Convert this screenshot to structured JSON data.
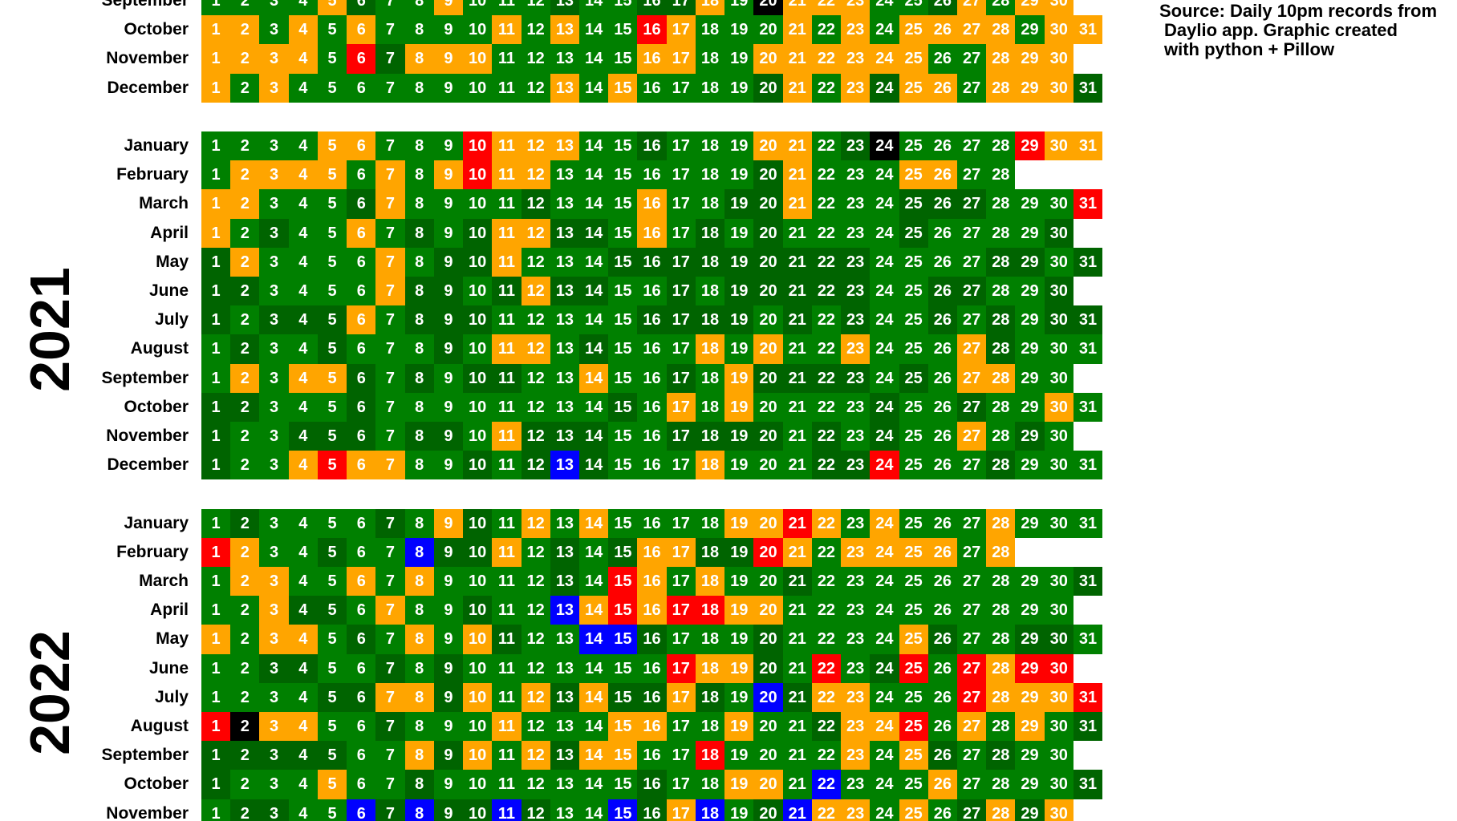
{
  "source_note": {
    "lines": [
      "Source: Daily 10pm records from",
      "Daylio app. Graphic created",
      "with python + Pillow"
    ]
  },
  "mood_colors": {
    "D": "#006400",
    "G": "#008000",
    "O": "#FFA500",
    "R": "#FF0000",
    "B": "#0000FF",
    "K": "#000000"
  },
  "years": [
    {
      "label": "",
      "months": [
        {
          "name": "September",
          "days": "GGGGODGGOGGGDGGDDOGKOOOGGDOGOO"
        },
        {
          "name": "October",
          "days": "OOGOGOGGGGOGOGGROGGGOGOGOOOOGOO"
        },
        {
          "name": "November",
          "days": "OOOOGRDOOOGGGGGOOGGOOOOOOGGOOO"
        },
        {
          "name": "December",
          "days": "OGOGGGGGGGGGOGOGGGGDOGODOOGOOOD"
        }
      ]
    },
    {
      "label": "2021",
      "months": [
        {
          "name": "January",
          "days": "GGGGOOGGGROOOGGDGGGOOGDKGGGGROO"
        },
        {
          "name": "February",
          "days": "GOOOOGOGOROOGGGGGGGDOGGGOOGG"
        },
        {
          "name": "March",
          "days": "OOGGGDOGGGGDGGGOGGDDOGGGDDDGGGR"
        },
        {
          "name": "April",
          "days": "OGDGGOGDGDOODDGOGDGDGGGGDGGGGD"
        },
        {
          "name": "May",
          "days": "DOGGGGOGDDOGGGDDDDDDDDDGGGGDDGD"
        },
        {
          "name": "June",
          "days": "DDGGGGODDGDODDGGDGDDDDDGGDDGGD"
        },
        {
          "name": "July",
          "days": "DGDDDOGDDDGGGGGDDDDGDGDGGDGDGDD"
        },
        {
          "name": "August",
          "days": "GDGGDGGGDGOOGDGGGOGOGGOGGGODGGG"
        },
        {
          "name": "September",
          "days": "GOGOODGDGDDGGOGGDGODDDDGDGOOGG"
        },
        {
          "name": "October",
          "days": "DDGGGDGGGGGGGGDGOGOGGGGDGGDGGOG"
        },
        {
          "name": "November",
          "days": "DGGDDDGDDGODDDGGDDDDGDGDGGOGDG"
        },
        {
          "name": "December",
          "days": "DGGOROOGGDGDBDGGGOGGGDDRGGGDGGG"
        }
      ]
    },
    {
      "label": "2022",
      "months": [
        {
          "name": "January",
          "days": "GDGGGGDGODGOGOGGGGOOROGOGGGOGGG"
        },
        {
          "name": "February",
          "days": "ROGGDGGBDDOGDGDOODDROGOOOOGO"
        },
        {
          "name": "March",
          "days": "GOOGGOGOGGGGDGROGOGGDGGGGGGGGGD"
        },
        {
          "name": "April",
          "days": "GGODDGOGGDGGBORORROOGGGGGGGGGG"
        },
        {
          "name": "May",
          "days": "OGOOGDGOGODGGBBDGGGDGGGGODGGDDG"
        },
        {
          "name": "June",
          "days": "GGDDGGDGDGGGGGGGROODGRGDRGRORR"
        },
        {
          "name": "July",
          "days": "GGGGDDOODOGODODDODGBDOOGGGROOOR"
        },
        {
          "name": "August",
          "days": "RKOOGGDGGGOGGGOOGGOGGDOORGOGOGD"
        },
        {
          "name": "September",
          "days": "DDDDDGGODOGODOOGGRGGGGOGODGDGG"
        },
        {
          "name": "October",
          "days": "DGGGOGGDGGGGGGGDGGOOGBGGGOGGGGD"
        },
        {
          "name": "November",
          "days": "GDDGGBDBDDBDGGBDOBGDBOOGOGDODO"
        }
      ]
    }
  ]
}
